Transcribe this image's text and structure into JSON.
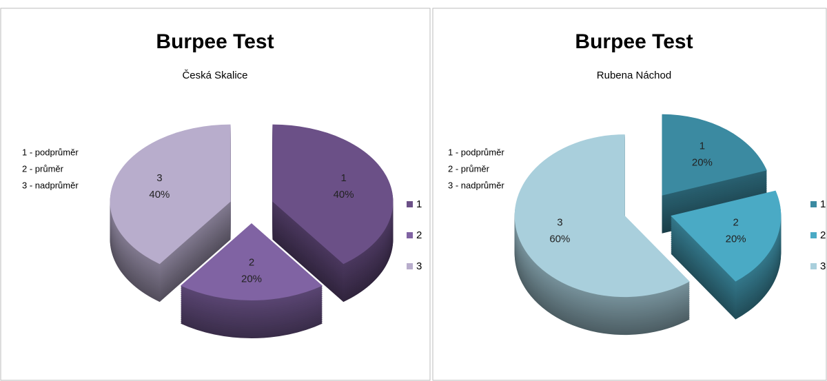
{
  "chart_data": [
    {
      "type": "pie",
      "title": "Burpee Test",
      "subtitle": "Česká Skalice",
      "notes": [
        "1 - podprůměr",
        "2 - průměr",
        "3 - nadprůměr"
      ],
      "categories": [
        "1",
        "2",
        "3"
      ],
      "values": [
        40,
        20,
        40
      ],
      "value_labels": [
        "40%",
        "20%",
        "40%"
      ],
      "colors": [
        "#6b5087",
        "#8063a3",
        "#b8adcc"
      ],
      "legend": "right"
    },
    {
      "type": "pie",
      "title": "Burpee Test",
      "subtitle": "Rubena Náchod",
      "notes": [
        "1 - podprůměr",
        "2 - průměr",
        "3 - nadprůměr"
      ],
      "categories": [
        "1",
        "2",
        "3"
      ],
      "values": [
        20,
        20,
        60
      ],
      "value_labels": [
        "20%",
        "20%",
        "60%"
      ],
      "colors": [
        "#3b8aa1",
        "#4aaac5",
        "#a9cfdc"
      ],
      "legend": "right"
    }
  ]
}
